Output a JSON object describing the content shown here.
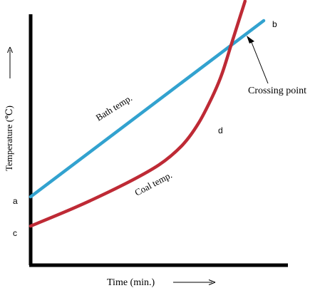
{
  "chart_data": {
    "type": "line",
    "title": "",
    "xlabel": "Time (min.)",
    "ylabel": "Temperature (℃)",
    "grid": false,
    "legend": "none",
    "series": [
      {
        "name": "Bath temp.",
        "color": "#32a2cf",
        "x": [
          0,
          100
        ],
        "y": [
          28,
          100
        ]
      },
      {
        "name": "Coal temp.",
        "color": "#be2a35",
        "x": [
          0,
          20,
          40,
          55,
          65,
          72,
          78,
          82,
          86,
          90,
          92
        ],
        "y": [
          16,
          24,
          33,
          41,
          49,
          58,
          69,
          78,
          90,
          102,
          108
        ]
      }
    ],
    "annotations": [
      {
        "text": "Crossing point",
        "x": 92,
        "y": 97
      },
      {
        "text": "a",
        "axis": "y",
        "y": 28
      },
      {
        "text": "c",
        "axis": "y",
        "y": 16
      },
      {
        "text": "b",
        "x": 100,
        "y": 100
      },
      {
        "text": "d",
        "x": 86,
        "y": 90
      }
    ]
  }
}
